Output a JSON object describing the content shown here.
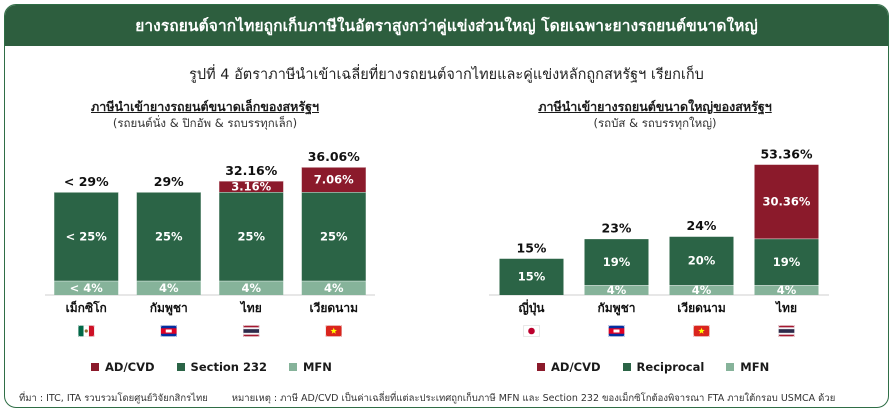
{
  "header": {
    "title": "ยางรถยนต์จากไทยถูกเก็บภาษีในอัตราสูงกว่าคู่แข่งส่วนใหญ่ โดยเฉพาะยางรถยนต์ขนาดใหญ่"
  },
  "subtitle": "รูปที่ 4 อัตราภาษีนำเข้าเฉลี่ยที่ยางรถยนต์จากไทยและคู่แข่งหลักถูกสหรัฐฯ เรียกเก็บ",
  "colors": {
    "adcvd": "#8b1a2b",
    "mid": "#2b6446",
    "mfn": "#86b39a",
    "header": "#2d5e3e"
  },
  "chart_data": [
    {
      "type": "bar",
      "stacked": true,
      "title": "ภาษีนำเข้ายางรถยนต์ขนาดเล็กของสหรัฐฯ",
      "subtitle": "(รถยนต์นั่ง & ปิกอัพ & รถบรรทุกเล็ก)",
      "categories": [
        "เม็กซิโก",
        "กัมพูชา",
        "ไทย",
        "เวียดนาม"
      ],
      "flags": [
        "mexico-flag-icon",
        "cambodia-flag-icon",
        "thailand-flag-icon",
        "vietnam-flag-icon"
      ],
      "series": [
        {
          "name": "MFN",
          "values": [
            4,
            4,
            4,
            4
          ],
          "labels": [
            "< 4%",
            "4%",
            "4%",
            "4%"
          ]
        },
        {
          "name": "Section 232",
          "values": [
            25,
            25,
            25,
            25
          ],
          "labels": [
            "< 25%",
            "25%",
            "25%",
            "25%"
          ]
        },
        {
          "name": "AD/CVD",
          "values": [
            0,
            0,
            3.16,
            7.06
          ],
          "labels": [
            "",
            "",
            "3.16%",
            "7.06%"
          ]
        }
      ],
      "totals": [
        "< 29%",
        "29%",
        "32.16%",
        "36.06%"
      ],
      "legend": [
        "AD/CVD",
        "Section 232",
        "MFN"
      ]
    },
    {
      "type": "bar",
      "stacked": true,
      "title": "ภาษีนำเข้ายางรถยนต์ขนาดใหญ่ของสหรัฐฯ",
      "subtitle": "(รถบัส & รถบรรทุกใหญ่)",
      "categories": [
        "ญี่ปุ่น",
        "กัมพูชา",
        "เวียดนาม",
        "ไทย"
      ],
      "flags": [
        "japan-flag-icon",
        "cambodia-flag-icon",
        "vietnam-flag-icon",
        "thailand-flag-icon"
      ],
      "series": [
        {
          "name": "MFN",
          "values": [
            0,
            4,
            4,
            4
          ],
          "labels": [
            "",
            "4%",
            "4%",
            "4%"
          ]
        },
        {
          "name": "Reciprocal",
          "values": [
            15,
            19,
            20,
            19
          ],
          "labels": [
            "15%",
            "19%",
            "20%",
            "19%"
          ]
        },
        {
          "name": "AD/CVD",
          "values": [
            0,
            0,
            0,
            30.36
          ],
          "labels": [
            "",
            "",
            "",
            "30.36%"
          ]
        }
      ],
      "totals": [
        "15%",
        "23%",
        "24%",
        "53.36%"
      ],
      "legend": [
        "AD/CVD",
        "Reciprocal",
        "MFN"
      ]
    }
  ],
  "footer": {
    "source": "ที่มา : ITC, ITA รวบรวมโดยศูนย์วิจัยกสิกรไทย",
    "note": "หมายเหตุ : ภาษี AD/CVD เป็นค่าเฉลี่ยที่แต่ละประเทศถูกเก็บภาษี MFN และ Section 232 ของเม็กซิโกต้องพิจารณา FTA ภายใต้กรอบ USMCA ด้วย"
  }
}
